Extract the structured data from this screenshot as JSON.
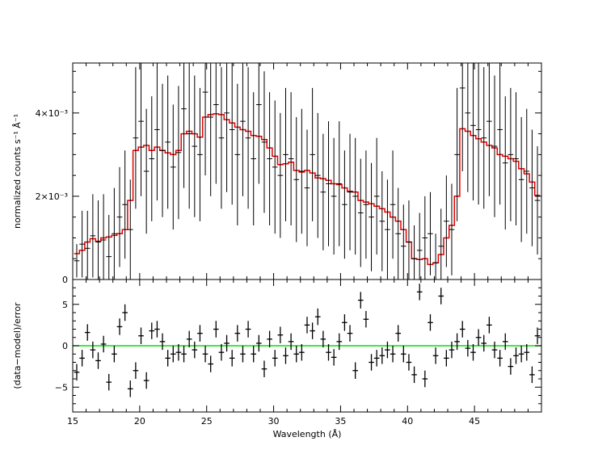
{
  "chart_data": [
    {
      "type": "scatter",
      "panel": "top",
      "xlabel": "Wavelength (Å)",
      "ylabel": "normalized counts s⁻¹ Å⁻¹",
      "xlim": [
        15,
        50
      ],
      "ylim": [
        0,
        0.052
      ],
      "ytick_labels": [
        "0",
        "2×10⁻³",
        "4×10⁻³"
      ],
      "xtick_labels": [
        "15",
        "20",
        "25",
        "30",
        "35",
        "40",
        "45"
      ],
      "colors": {
        "data": "#000000",
        "model": "#e00000"
      },
      "series": [
        {
          "role": "data",
          "x": [
            15.3,
            15.7,
            16.1,
            16.5,
            16.9,
            17.3,
            17.7,
            18.1,
            18.5,
            18.9,
            19.3,
            19.7,
            20.1,
            20.5,
            20.9,
            21.3,
            21.7,
            22.1,
            22.5,
            22.9,
            23.3,
            23.7,
            24.1,
            24.5,
            24.9,
            25.3,
            25.7,
            26.1,
            26.5,
            26.9,
            27.3,
            27.7,
            28.1,
            28.5,
            28.9,
            29.3,
            29.7,
            30.1,
            30.5,
            30.9,
            31.3,
            31.7,
            32.1,
            32.5,
            32.9,
            33.3,
            33.7,
            34.1,
            34.5,
            34.9,
            35.3,
            35.7,
            36.1,
            36.5,
            36.9,
            37.3,
            37.7,
            38.1,
            38.5,
            38.9,
            39.3,
            39.7,
            40.1,
            40.5,
            40.9,
            41.3,
            41.7,
            42.1,
            42.5,
            42.9,
            43.3,
            43.7,
            44.1,
            44.5,
            44.9,
            45.3,
            45.7,
            46.1,
            46.5,
            46.9,
            47.3,
            47.7,
            48.1,
            48.5,
            48.9,
            49.3,
            49.7
          ],
          "y": [
            0.0045,
            0.0085,
            0.0075,
            0.0105,
            0.009,
            0.0095,
            0.0055,
            0.011,
            0.015,
            0.018,
            0.012,
            0.034,
            0.038,
            0.026,
            0.029,
            0.036,
            0.031,
            0.033,
            0.027,
            0.0305,
            0.041,
            0.035,
            0.032,
            0.03,
            0.045,
            0.039,
            0.042,
            0.034,
            0.04,
            0.036,
            0.03,
            0.038,
            0.034,
            0.029,
            0.042,
            0.033,
            0.029,
            0.027,
            0.025,
            0.03,
            0.029,
            0.024,
            0.026,
            0.022,
            0.03,
            0.025,
            0.021,
            0.023,
            0.02,
            0.023,
            0.018,
            0.021,
            0.02,
            0.016,
            0.018,
            0.015,
            0.02,
            0.014,
            0.012,
            0.018,
            0.011,
            0.008,
            0.009,
            0.005,
            0.007,
            0.01,
            0.011,
            0.004,
            0.008,
            0.014,
            0.012,
            0.03,
            0.046,
            0.04,
            0.037,
            0.036,
            0.034,
            0.038,
            0.032,
            0.036,
            0.028,
            0.03,
            0.029,
            0.024,
            0.026,
            0.022,
            0.019
          ],
          "yerr": [
            0.004,
            0.008,
            0.009,
            0.01,
            0.01,
            0.011,
            0.01,
            0.011,
            0.012,
            0.013,
            0.012,
            0.017,
            0.018,
            0.015,
            0.015,
            0.017,
            0.016,
            0.016,
            0.015,
            0.016,
            0.019,
            0.018,
            0.017,
            0.016,
            0.02,
            0.019,
            0.019,
            0.017,
            0.019,
            0.018,
            0.017,
            0.018,
            0.017,
            0.016,
            0.019,
            0.017,
            0.016,
            0.016,
            0.015,
            0.016,
            0.016,
            0.015,
            0.015,
            0.014,
            0.016,
            0.015,
            0.014,
            0.015,
            0.014,
            0.015,
            0.013,
            0.014,
            0.014,
            0.013,
            0.013,
            0.013,
            0.014,
            0.012,
            0.012,
            0.013,
            0.011,
            0.01,
            0.01,
            0.008,
            0.009,
            0.01,
            0.01,
            0.007,
            0.009,
            0.011,
            0.011,
            0.016,
            0.02,
            0.019,
            0.018,
            0.018,
            0.017,
            0.018,
            0.017,
            0.018,
            0.016,
            0.016,
            0.016,
            0.015,
            0.015,
            0.014,
            0.013
          ]
        },
        {
          "role": "model",
          "type": "step",
          "x": [
            15.3,
            15.7,
            16.1,
            16.5,
            16.9,
            17.3,
            17.7,
            18.1,
            18.5,
            18.9,
            19.3,
            19.7,
            20.1,
            20.5,
            20.9,
            21.3,
            21.7,
            22.1,
            22.5,
            22.9,
            23.3,
            23.7,
            24.1,
            24.5,
            24.9,
            25.3,
            25.7,
            26.1,
            26.5,
            26.9,
            27.3,
            27.7,
            28.1,
            28.5,
            28.9,
            29.3,
            29.7,
            30.1,
            30.5,
            30.9,
            31.3,
            31.7,
            32.1,
            32.5,
            32.9,
            33.3,
            33.7,
            34.1,
            34.5,
            34.9,
            35.3,
            35.7,
            36.1,
            36.5,
            36.9,
            37.3,
            37.7,
            38.1,
            38.5,
            38.9,
            39.3,
            39.7,
            40.1,
            40.5,
            40.9,
            41.3,
            41.7,
            42.1,
            42.5,
            42.9,
            43.3,
            43.7,
            44.1,
            44.5,
            44.9,
            45.3,
            45.7,
            46.1,
            46.5,
            46.9,
            47.3,
            47.7,
            48.1,
            48.5,
            48.9,
            49.3,
            49.7
          ],
          "y": [
            0.0062,
            0.007,
            0.009,
            0.0098,
            0.0092,
            0.01,
            0.0102,
            0.0106,
            0.011,
            0.012,
            0.019,
            0.031,
            0.0318,
            0.0322,
            0.031,
            0.0318,
            0.031,
            0.0304,
            0.03,
            0.031,
            0.035,
            0.0356,
            0.035,
            0.0342,
            0.039,
            0.0396,
            0.0398,
            0.0396,
            0.0384,
            0.0376,
            0.0366,
            0.036,
            0.0356,
            0.0346,
            0.0344,
            0.0336,
            0.0316,
            0.0296,
            0.0276,
            0.0278,
            0.0282,
            0.0262,
            0.0258,
            0.0262,
            0.0256,
            0.0244,
            0.0242,
            0.0238,
            0.023,
            0.0228,
            0.022,
            0.0212,
            0.021,
            0.019,
            0.0186,
            0.0182,
            0.0176,
            0.017,
            0.0162,
            0.015,
            0.014,
            0.012,
            0.009,
            0.005,
            0.0048,
            0.005,
            0.0036,
            0.004,
            0.006,
            0.01,
            0.013,
            0.02,
            0.0362,
            0.0356,
            0.0346,
            0.0338,
            0.033,
            0.0322,
            0.0316,
            0.03,
            0.0296,
            0.029,
            0.0284,
            0.0266,
            0.0254,
            0.0234,
            0.0202
          ]
        }
      ]
    },
    {
      "type": "scatter",
      "panel": "bottom",
      "xlabel": "Wavelength (Å)",
      "ylabel": "(data−model)/error",
      "xlim": [
        15,
        50
      ],
      "ylim": [
        -8,
        8
      ],
      "ytick_labels": [
        "−5",
        "0",
        "5"
      ],
      "xtick_labels": [
        "15",
        "20",
        "25",
        "30",
        "35",
        "40",
        "45"
      ],
      "colors": {
        "data": "#000000",
        "zero_line": "#00e000"
      },
      "zero_line": 0,
      "series": [
        {
          "role": "residuals",
          "x": [
            15.3,
            15.7,
            16.1,
            16.5,
            16.9,
            17.3,
            17.7,
            18.1,
            18.5,
            18.9,
            19.3,
            19.7,
            20.1,
            20.5,
            20.9,
            21.3,
            21.7,
            22.1,
            22.5,
            22.9,
            23.3,
            23.7,
            24.1,
            24.5,
            24.9,
            25.3,
            25.7,
            26.1,
            26.5,
            26.9,
            27.3,
            27.7,
            28.1,
            28.5,
            28.9,
            29.3,
            29.7,
            30.1,
            30.5,
            30.9,
            31.3,
            31.7,
            32.1,
            32.5,
            32.9,
            33.3,
            33.7,
            34.1,
            34.5,
            34.9,
            35.3,
            35.7,
            36.1,
            36.5,
            36.9,
            37.3,
            37.7,
            38.1,
            38.5,
            38.9,
            39.3,
            39.7,
            40.1,
            40.5,
            40.9,
            41.3,
            41.7,
            42.1,
            42.5,
            42.9,
            43.3,
            43.7,
            44.1,
            44.5,
            44.9,
            45.3,
            45.7,
            46.1,
            46.5,
            46.9,
            47.3,
            47.7,
            48.1,
            48.5,
            48.9,
            49.3,
            49.7
          ],
          "y": [
            -3.2,
            -1.5,
            1.6,
            -0.5,
            -1.8,
            0.2,
            -4.4,
            -1.0,
            2.3,
            4.0,
            -5.2,
            -3.0,
            1.2,
            -4.2,
            1.8,
            2.0,
            0.5,
            -1.5,
            -1.0,
            -0.8,
            -1.0,
            0.8,
            -0.5,
            1.5,
            -1.0,
            -2.2,
            2.0,
            -0.8,
            0.3,
            -1.5,
            1.5,
            -1.0,
            2.0,
            -1.0,
            0.3,
            -2.8,
            0.8,
            -1.5,
            1.3,
            -1.2,
            0.5,
            -1.0,
            -0.8,
            2.5,
            1.8,
            3.5,
            0.8,
            -0.8,
            -1.4,
            0.5,
            2.8,
            1.5,
            -3.0,
            5.5,
            3.2,
            -2.0,
            -1.5,
            -1.2,
            -0.5,
            -1.0,
            1.5,
            -1.0,
            -2.0,
            -3.5,
            6.5,
            -4.0,
            2.8,
            -1.2,
            6.0,
            -1.5,
            -0.5,
            0.5,
            2.0,
            -0.3,
            -0.8,
            1.0,
            0.3,
            2.5,
            -0.5,
            -1.5,
            0.5,
            -2.5,
            -1.2,
            -1.0,
            -0.8,
            -3.5,
            1.2
          ],
          "yerr": [
            1,
            1,
            1,
            1,
            1,
            1,
            1,
            1,
            1,
            1,
            1,
            1,
            1,
            1,
            1,
            1,
            1,
            1,
            1,
            1,
            1,
            1,
            1,
            1,
            1,
            1,
            1,
            1,
            1,
            1,
            1,
            1,
            1,
            1,
            1,
            1,
            1,
            1,
            1,
            1,
            1,
            1,
            1,
            1,
            1,
            1,
            1,
            1,
            1,
            1,
            1,
            1,
            1,
            1,
            1,
            1,
            1,
            1,
            1,
            1,
            1,
            1,
            1,
            1,
            1,
            1,
            1,
            1,
            1,
            1,
            1,
            1,
            1,
            1,
            1,
            1,
            1,
            1,
            1,
            1,
            1,
            1,
            1,
            1,
            1,
            1,
            1
          ],
          "xerr": 0.2
        }
      ]
    }
  ]
}
